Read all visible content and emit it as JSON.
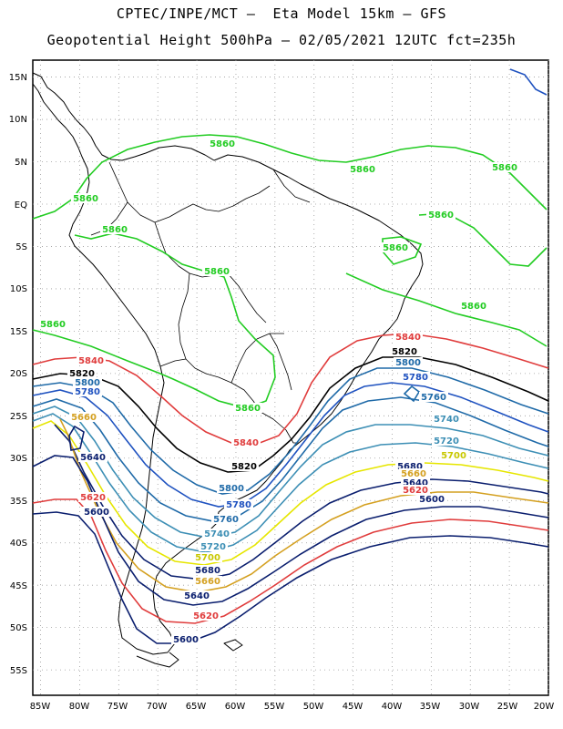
{
  "header": {
    "line1": "CPTEC/INPE/MCT –  Eta Model 15km – GFS",
    "line2": "Geopotential Height 500hPa – 02/05/2021 12UTC fct=235h"
  },
  "axes": {
    "lat_labels": [
      "15N",
      "10N",
      "5N",
      "EQ",
      "5S",
      "10S",
      "15S",
      "20S",
      "25S",
      "30S",
      "35S",
      "40S",
      "45S",
      "50S",
      "55S"
    ],
    "lon_labels": [
      "85W",
      "80W",
      "75W",
      "70W",
      "65W",
      "60W",
      "55W",
      "50W",
      "45W",
      "40W",
      "35W",
      "30W",
      "25W",
      "20W"
    ]
  },
  "map": {
    "extent": {
      "lon_min": -86,
      "lon_max": -20,
      "lat_min": -58,
      "lat_max": 17
    },
    "variable": "Geopotential Height 500hPa",
    "contour_colors": {
      "5600": "#0a1e6e",
      "5620": "#e03c3c",
      "5640": "#0a1e6e",
      "5660": "#d4a020",
      "5680": "#0a1e6e",
      "5700": "#e6e600",
      "5720": "#3d8fb5",
      "5740": "#3d8fb5",
      "5760": "#1f6aa8",
      "5780": "#1f52c0",
      "5800": "#1f6aa8",
      "5820": "#000000",
      "5840": "#e03c3c",
      "5860": "#22cc22"
    },
    "contour_labels": [
      {
        "text": "5860",
        "color": "#22cc22"
      },
      {
        "text": "5860",
        "color": "#22cc22"
      },
      {
        "text": "5860",
        "color": "#22cc22"
      },
      {
        "text": "5860",
        "color": "#22cc22"
      },
      {
        "text": "5860",
        "color": "#22cc22"
      },
      {
        "text": "5860",
        "color": "#22cc22"
      },
      {
        "text": "5860",
        "color": "#22cc22"
      },
      {
        "text": "5860",
        "color": "#22cc22"
      },
      {
        "text": "5860",
        "color": "#22cc22"
      },
      {
        "text": "5860",
        "color": "#22cc22"
      },
      {
        "text": "5860",
        "color": "#22cc22"
      },
      {
        "text": "5840",
        "color": "#e03c3c"
      },
      {
        "text": "5840",
        "color": "#e03c3c"
      },
      {
        "text": "5840",
        "color": "#e03c3c"
      },
      {
        "text": "5840",
        "color": "#e03c3c"
      },
      {
        "text": "5820",
        "color": "#000000"
      },
      {
        "text": "5820",
        "color": "#000000"
      },
      {
        "text": "5820",
        "color": "#000000"
      },
      {
        "text": "5800",
        "color": "#1f6aa8"
      },
      {
        "text": "5800",
        "color": "#1f6aa8"
      },
      {
        "text": "5800",
        "color": "#1f6aa8"
      },
      {
        "text": "5780",
        "color": "#1f52c0"
      },
      {
        "text": "5780",
        "color": "#1f52c0"
      },
      {
        "text": "5780",
        "color": "#1f52c0"
      },
      {
        "text": "5760",
        "color": "#1f6aa8"
      },
      {
        "text": "5760",
        "color": "#1f6aa8"
      },
      {
        "text": "5740",
        "color": "#3d8fb5"
      },
      {
        "text": "5740",
        "color": "#3d8fb5"
      },
      {
        "text": "5720",
        "color": "#3d8fb5"
      },
      {
        "text": "5720",
        "color": "#3d8fb5"
      },
      {
        "text": "5700",
        "color": "#c8c800"
      },
      {
        "text": "5700",
        "color": "#c8c800"
      },
      {
        "text": "5680",
        "color": "#0a1e6e"
      },
      {
        "text": "5680",
        "color": "#0a1e6e"
      },
      {
        "text": "5660",
        "color": "#d4a020"
      },
      {
        "text": "5660",
        "color": "#d4a020"
      },
      {
        "text": "5660",
        "color": "#d4a020"
      },
      {
        "text": "5640",
        "color": "#0a1e6e"
      },
      {
        "text": "5640",
        "color": "#0a1e6e"
      },
      {
        "text": "5640",
        "color": "#0a1e6e"
      },
      {
        "text": "5620",
        "color": "#e03c3c"
      },
      {
        "text": "5620",
        "color": "#e03c3c"
      },
      {
        "text": "5620",
        "color": "#e03c3c"
      },
      {
        "text": "5600",
        "color": "#0a1e6e"
      },
      {
        "text": "5600",
        "color": "#0a1e6e"
      },
      {
        "text": "5600",
        "color": "#0a1e6e"
      }
    ]
  }
}
